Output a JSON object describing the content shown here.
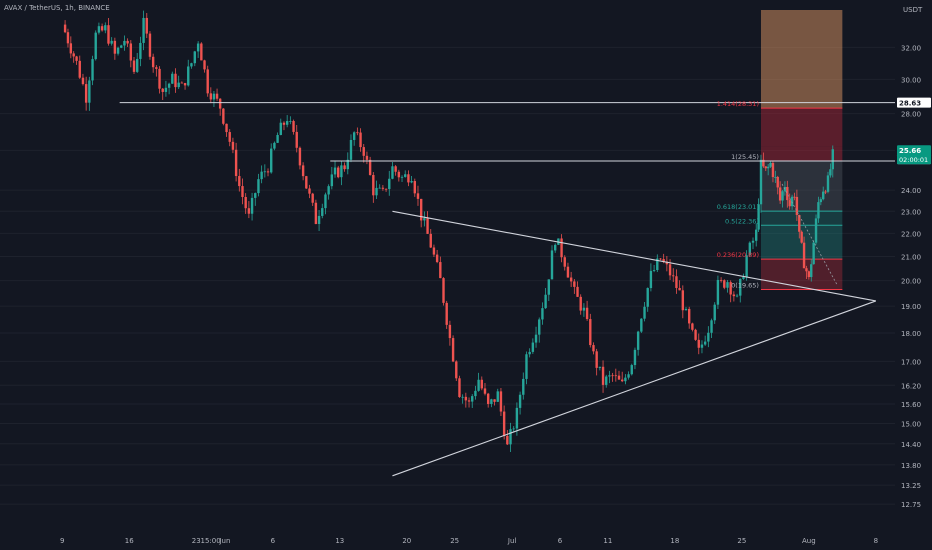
{
  "header": {
    "symbol_line": "AVAX / TetherUS, 1h, BINANCE"
  },
  "axis": {
    "currency": "USDT"
  },
  "colors": {
    "background": "#131722",
    "up": "#26a69a",
    "down": "#ef5350",
    "grid": "#1e222d",
    "axis_text": "#b2b5be",
    "line": "#d1d4dc",
    "fib_green": "#26a69a",
    "fib_red": "#f23645",
    "badge_green": "#089981"
  },
  "chart_data": {
    "type": "candlestick",
    "title": "AVAX / TetherUS, 1h, BINANCE",
    "y_scale": "log",
    "ylim": [
      12.5,
      34.5
    ],
    "xlim": [
      9,
      39
    ],
    "y_ticks": [
      "32.00",
      "30.00",
      "28.00",
      "26.00",
      "24.00",
      "23.00",
      "22.00",
      "21.00",
      "20.00",
      "19.00",
      "18.00",
      "17.00",
      "16.20",
      "15.60",
      "15.00",
      "14.40",
      "13.80",
      "13.25",
      "12.75"
    ],
    "x_ticks": [
      {
        "label": "9",
        "x": 9
      },
      {
        "label": "16",
        "x": 16
      },
      {
        "label": "23",
        "x": 23
      },
      {
        "label": "15:00",
        "x": 24.5
      },
      {
        "label": "Jun",
        "x": 26
      },
      {
        "label": "6",
        "x": 31
      },
      {
        "label": "13",
        "x": 38
      },
      {
        "label": "20",
        "x": 45
      },
      {
        "label": "25",
        "x": 50
      },
      {
        "label": "Jul",
        "x": 56
      },
      {
        "label": "6",
        "x": 61
      },
      {
        "label": "11",
        "x": 66
      },
      {
        "label": "18",
        "x": 73
      },
      {
        "label": "25",
        "x": 80
      },
      {
        "label": "Aug",
        "x": 87
      },
      {
        "label": "8",
        "x": 94
      }
    ],
    "price_path": [
      [
        9,
        33.5
      ],
      [
        10.5,
        31
      ],
      [
        11.5,
        29
      ],
      [
        12.5,
        32.8
      ],
      [
        13.5,
        33.2
      ],
      [
        14.5,
        31.5
      ],
      [
        15.5,
        32.5
      ],
      [
        16.5,
        30.5
      ],
      [
        17.5,
        33.5
      ],
      [
        18.5,
        31
      ],
      [
        19.5,
        29.3
      ],
      [
        20.5,
        30
      ],
      [
        21.5,
        29.5
      ],
      [
        22.5,
        31
      ],
      [
        23.2,
        32.5
      ],
      [
        24.2,
        29.5
      ],
      [
        25.5,
        28.4
      ],
      [
        26.5,
        26.5
      ],
      [
        27.5,
        24.2
      ],
      [
        28.5,
        22.7
      ],
      [
        29.5,
        24.5
      ],
      [
        30.5,
        25.2
      ],
      [
        31.5,
        26.8
      ],
      [
        32.5,
        27.8
      ],
      [
        33.5,
        26.2
      ],
      [
        34.5,
        24.2
      ],
      [
        35.5,
        22.6
      ],
      [
        36.5,
        23.9
      ],
      [
        37.5,
        24.8
      ],
      [
        38.5,
        25.2
      ],
      [
        39.5,
        26.9
      ],
      [
        40.5,
        26
      ],
      [
        41.5,
        24
      ],
      [
        42.5,
        23.8
      ],
      [
        43.5,
        25.1
      ],
      [
        44.5,
        24.6
      ],
      [
        45.5,
        24.8
      ],
      [
        46.5,
        22.8
      ],
      [
        47.5,
        21.5
      ],
      [
        48.5,
        20
      ],
      [
        49.5,
        17.8
      ],
      [
        50.5,
        16
      ],
      [
        51.5,
        15.6
      ],
      [
        52.5,
        16.4
      ],
      [
        53.5,
        15.5
      ],
      [
        54.5,
        15.9
      ],
      [
        55.5,
        14.3
      ],
      [
        56.5,
        15.3
      ],
      [
        57.5,
        17.2
      ],
      [
        58.5,
        18.2
      ],
      [
        59.5,
        19.5
      ],
      [
        60.5,
        21.8
      ],
      [
        61.5,
        20.8
      ],
      [
        62.5,
        19.5
      ],
      [
        63.5,
        18.8
      ],
      [
        64.5,
        17.2
      ],
      [
        65.5,
        16.3
      ],
      [
        66.5,
        16.5
      ],
      [
        67.5,
        16.2
      ],
      [
        68.5,
        17
      ],
      [
        69.5,
        18.7
      ],
      [
        70.5,
        20.2
      ],
      [
        71.5,
        20.9
      ],
      [
        72.5,
        20.3
      ],
      [
        73.5,
        19.5
      ],
      [
        74.5,
        18.2
      ],
      [
        75.5,
        17.3
      ],
      [
        76.5,
        18.2
      ],
      [
        77.5,
        19.8
      ],
      [
        78.5,
        20
      ],
      [
        79.5,
        19.2
      ],
      [
        80.5,
        21
      ],
      [
        81.5,
        22
      ],
      [
        82,
        25.2
      ],
      [
        82.5,
        24.9
      ],
      [
        83,
        25.3
      ],
      [
        83.5,
        24.5
      ],
      [
        84,
        23.5
      ],
      [
        84.5,
        24.3
      ],
      [
        85,
        23.3
      ],
      [
        85.5,
        23.9
      ],
      [
        86,
        21.8
      ],
      [
        86.5,
        20.8
      ],
      [
        87,
        20
      ],
      [
        87.5,
        21.6
      ],
      [
        88,
        23.4
      ],
      [
        88.5,
        24.1
      ],
      [
        89,
        24.4
      ],
      [
        89.5,
        25.7
      ]
    ],
    "horizontal_lines": [
      {
        "price": 28.63,
        "label": "28.63"
      },
      {
        "price": 25.45,
        "label": "25.45"
      }
    ],
    "current_price": {
      "price": 25.66,
      "label": "25.66",
      "countdown": "02:00:01"
    },
    "fib_levels": [
      {
        "ratio": "1.414",
        "price": 28.31,
        "label": "1.414(28.31)"
      },
      {
        "ratio": "1",
        "price": 25.45,
        "label": "1(25.45)"
      },
      {
        "ratio": "0.618",
        "price": 23.01,
        "label": "0.618(23.01)"
      },
      {
        "ratio": "0.5",
        "price": 22.36,
        "label": "0.5(22.36)"
      },
      {
        "ratio": "0.236",
        "price": 20.89,
        "label": "0.236(20.89)"
      },
      {
        "ratio": "0",
        "price": 19.65,
        "label": "0(19.65)"
      }
    ],
    "fib_zone": {
      "top": 26.2,
      "bottom": 19.65
    },
    "position_box": {
      "stop_top": 34.5,
      "stop_bottom": 28.31
    },
    "triangle": {
      "upper": [
        [
          43.5,
          23
        ],
        [
          67,
          21
        ]
      ],
      "lower": [
        [
          43.5,
          13.5
        ],
        [
          67,
          17.1
        ]
      ],
      "apex": [
        94,
        19.2
      ]
    },
    "annotations": [
      "1.414(28.31)",
      "1(25.45)",
      "0.618(23.01)",
      "0.5(22.36)",
      "0.236(20.89)",
      "0(19.65)"
    ]
  }
}
